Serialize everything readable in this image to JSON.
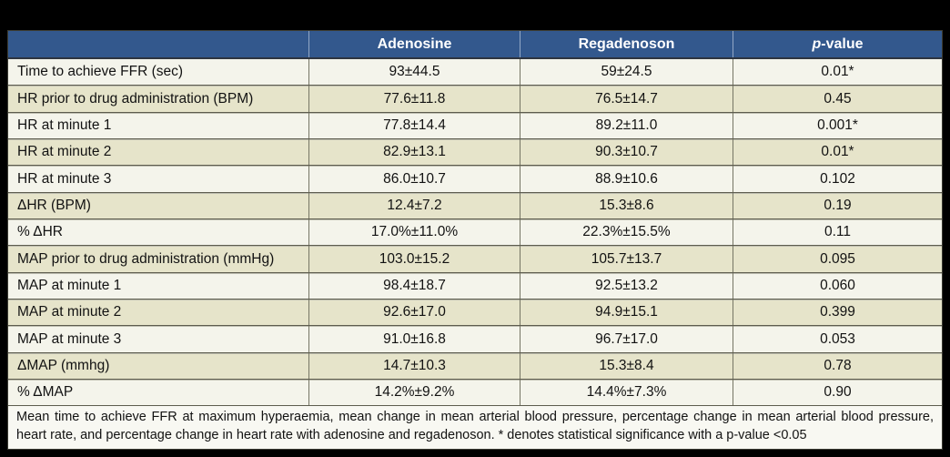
{
  "colors": {
    "frame_background": "#000000",
    "header_background": "#33588d",
    "header_text": "#ffffff",
    "row_light": "#f4f4eb",
    "row_dark": "#e6e4ca",
    "row_border": "#5d5c4e",
    "footnote_background": "#f8f8f2"
  },
  "table": {
    "header": {
      "metric": "",
      "adenosine": "Adenosine",
      "regadenoson": "Regadenoson",
      "p_italic": "p",
      "p_rest": "-value"
    },
    "rows": [
      {
        "label": "Time to achieve FFR (sec)",
        "adenosine": "93±44.5",
        "regadenoson": "59±24.5",
        "p_value": "0.01*"
      },
      {
        "label": "HR prior to drug administration (BPM)",
        "adenosine": "77.6±11.8",
        "regadenoson": "76.5±14.7",
        "p_value": "0.45"
      },
      {
        "label": "HR at minute 1",
        "adenosine": "77.8±14.4",
        "regadenoson": "89.2±11.0",
        "p_value": "0.001*"
      },
      {
        "label": "HR at minute 2",
        "adenosine": "82.9±13.1",
        "regadenoson": "90.3±10.7",
        "p_value": "0.01*"
      },
      {
        "label": "HR at minute 3",
        "adenosine": "86.0±10.7",
        "regadenoson": "88.9±10.6",
        "p_value": "0.102"
      },
      {
        "label": "ΔHR (BPM)",
        "adenosine": "12.4±7.2",
        "regadenoson": "15.3±8.6",
        "p_value": "0.19"
      },
      {
        "label": "% ΔHR",
        "adenosine": "17.0%±11.0%",
        "regadenoson": "22.3%±15.5%",
        "p_value": "0.11"
      },
      {
        "label": "MAP prior to drug administration (mmHg)",
        "adenosine": "103.0±15.2",
        "regadenoson": "105.7±13.7",
        "p_value": "0.095"
      },
      {
        "label": "MAP at minute 1",
        "adenosine": "98.4±18.7",
        "regadenoson": "92.5±13.2",
        "p_value": "0.060"
      },
      {
        "label": "MAP at minute 2",
        "adenosine": "92.6±17.0",
        "regadenoson": "94.9±15.1",
        "p_value": "0.399"
      },
      {
        "label": "MAP at minute 3",
        "adenosine": "91.0±16.8",
        "regadenoson": "96.7±17.0",
        "p_value": "0.053"
      },
      {
        "label": "ΔMAP (mmhg)",
        "adenosine": "14.7±10.3",
        "regadenoson": "15.3±8.4",
        "p_value": "0.78"
      },
      {
        "label": "% ΔMAP",
        "adenosine": "14.2%±9.2%",
        "regadenoson": "14.4%±7.3%",
        "p_value": "0.90"
      }
    ],
    "footnote": "Mean time to achieve FFR at maximum hyperaemia, mean change in mean arterial blood pressure, percentage change in mean arterial blood pressure, heart rate, and percentage change in heart rate with adenosine and regadenoson. * denotes statistical significance with a p-value <0.05"
  }
}
